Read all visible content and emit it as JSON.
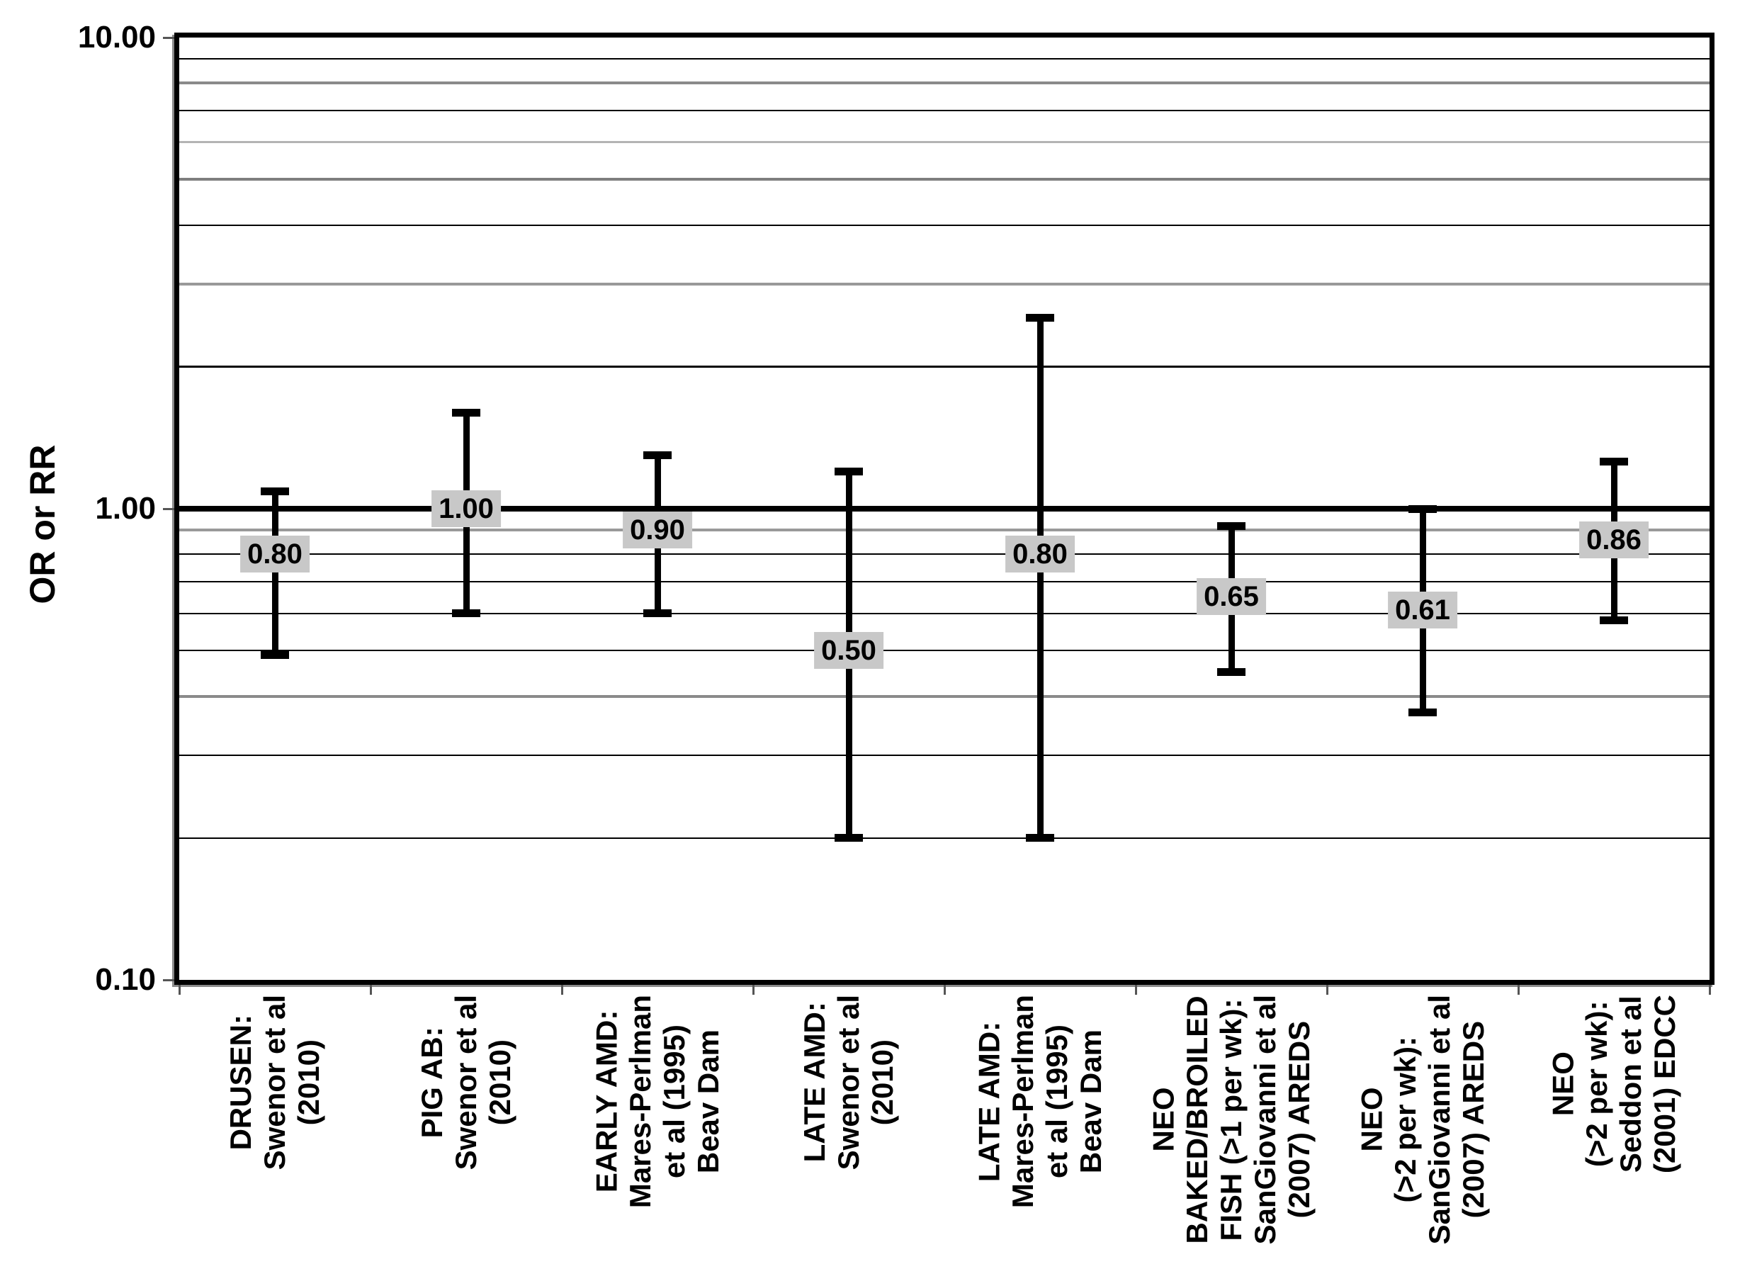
{
  "chart_data": {
    "type": "errorbar",
    "title": "",
    "xlabel": "",
    "ylabel": "OR or RR",
    "y_scale": "log10",
    "ylim": [
      0.1,
      10
    ],
    "grid": true,
    "legend": "none",
    "reference_line": 1.0,
    "y_ticks": [
      {
        "v": 10,
        "label": "10.00"
      },
      {
        "v": 1,
        "label": "1.00"
      },
      {
        "v": 0.1,
        "label": "0.10"
      }
    ],
    "gridlines": [
      {
        "v": 9,
        "color": "#000000",
        "w": 2
      },
      {
        "v": 8,
        "color": "#8a8a8a",
        "w": 4
      },
      {
        "v": 7,
        "color": "#000000",
        "w": 2
      },
      {
        "v": 6,
        "color": "#b4b4b4",
        "w": 3
      },
      {
        "v": 5,
        "color": "#7e7e7e",
        "w": 4
      },
      {
        "v": 4,
        "color": "#000000",
        "w": 2
      },
      {
        "v": 3,
        "color": "#999999",
        "w": 4
      },
      {
        "v": 2,
        "color": "#000000",
        "w": 3
      },
      {
        "v": 0.9,
        "color": "#999999",
        "w": 4
      },
      {
        "v": 0.8,
        "color": "#000000",
        "w": 2
      },
      {
        "v": 0.7,
        "color": "#000000",
        "w": 2
      },
      {
        "v": 0.6,
        "color": "#000000",
        "w": 2
      },
      {
        "v": 0.5,
        "color": "#000000",
        "w": 2
      },
      {
        "v": 0.4,
        "color": "#8a8a8a",
        "w": 4
      },
      {
        "v": 0.3,
        "color": "#000000",
        "w": 2
      },
      {
        "v": 0.2,
        "color": "#000000",
        "w": 2
      }
    ],
    "points": [
      {
        "label_lines": [
          "DRUSEN:",
          "Swenor et al",
          "(2010)"
        ],
        "value": 0.8,
        "value_label": "0.80",
        "ci_low": 0.49,
        "ci_high": 1.09
      },
      {
        "label_lines": [
          "PIG AB:",
          "Swenor et al",
          "(2010)"
        ],
        "value": 1.0,
        "value_label": "1.00",
        "ci_low": 0.6,
        "ci_high": 1.6
      },
      {
        "label_lines": [
          "EARLY AMD:",
          "Mares-Perlman",
          "et al (1995)",
          "Beav Dam"
        ],
        "value": 0.9,
        "value_label": "0.90",
        "ci_low": 0.6,
        "ci_high": 1.3
      },
      {
        "label_lines": [
          "LATE AMD:",
          "Swenor et al",
          "(2010)"
        ],
        "value": 0.5,
        "value_label": "0.50",
        "ci_low": 0.2,
        "ci_high": 1.2
      },
      {
        "label_lines": [
          "LATE AMD:",
          "Mares-Perlman",
          "et al (1995)",
          "Beav Dam"
        ],
        "value": 0.8,
        "value_label": "0.80",
        "ci_low": 0.2,
        "ci_high": 2.54
      },
      {
        "label_lines": [
          "NEO",
          "BAKED/BROILED",
          "FISH (>1 per wk):",
          "SanGiovanni et al",
          "(2007) AREDS"
        ],
        "value": 0.65,
        "value_label": "0.65",
        "ci_low": 0.45,
        "ci_high": 0.92
      },
      {
        "label_lines": [
          "NEO",
          "(>2 per wk):",
          "SanGiovanni et al",
          "(2007) AREDS"
        ],
        "value": 0.61,
        "value_label": "0.61",
        "ci_low": 0.37,
        "ci_high": 1.0
      },
      {
        "label_lines": [
          "NEO",
          "(>2 per wk):",
          "Seddon et al",
          "(2001) EDCC"
        ],
        "value": 0.86,
        "value_label": "0.86",
        "ci_low": 0.58,
        "ci_high": 1.26
      }
    ],
    "style": {
      "value_box_bg": "#c8c8c8",
      "bar_color": "#000000",
      "reference_line_width": 8,
      "bar_line_width": 9,
      "cap_width": 40,
      "cap_height": 11
    }
  }
}
